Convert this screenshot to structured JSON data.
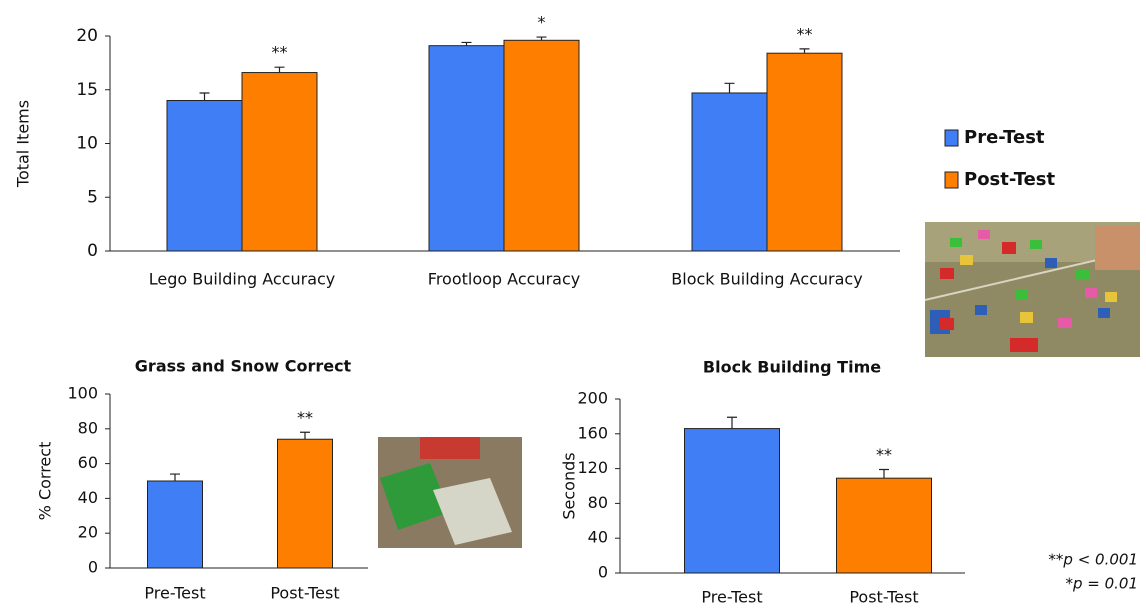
{
  "chart_data": [
    {
      "type": "bar",
      "ylabel": "Total Items",
      "categories": [
        "Lego Building Accuracy",
        "Frootloop Accuracy",
        "Block Building Accuracy"
      ],
      "series": [
        {
          "name": "Pre-Test",
          "color": "#3f7ef4",
          "values": [
            14.0,
            19.1,
            14.7
          ],
          "errors": [
            0.7,
            0.3,
            0.9
          ]
        },
        {
          "name": "Post-Test",
          "color": "#fe7f00",
          "values": [
            16.6,
            19.6,
            18.4
          ],
          "errors": [
            0.5,
            0.3,
            0.4
          ]
        }
      ],
      "annotations": [
        "**",
        "*",
        "**"
      ],
      "ylim": [
        0,
        20
      ],
      "yticks": [
        0,
        5,
        10,
        15,
        20
      ]
    },
    {
      "type": "bar",
      "title": "Grass and Snow Correct",
      "ylabel": "% Correct",
      "categories": [
        "Pre-Test",
        "Post-Test"
      ],
      "values": [
        50,
        74
      ],
      "errors": [
        4,
        4
      ],
      "colors": [
        "#3f7ef4",
        "#fe7f00"
      ],
      "annotations": [
        null,
        "**"
      ],
      "ylim": [
        0,
        100
      ],
      "yticks": [
        0,
        20,
        40,
        60,
        80,
        100
      ]
    },
    {
      "type": "bar",
      "title": "Block Building Time",
      "ylabel": "Seconds",
      "categories": [
        "Pre-Test",
        "Post-Test"
      ],
      "values": [
        166,
        109
      ],
      "errors": [
        13,
        10
      ],
      "colors": [
        "#3f7ef4",
        "#fe7f00"
      ],
      "annotations": [
        null,
        "**"
      ],
      "ylim": [
        0,
        200
      ],
      "yticks": [
        0,
        40,
        80,
        120,
        160,
        200
      ]
    }
  ],
  "notes": [
    "**p < 0.001",
    "*p = 0.01"
  ]
}
